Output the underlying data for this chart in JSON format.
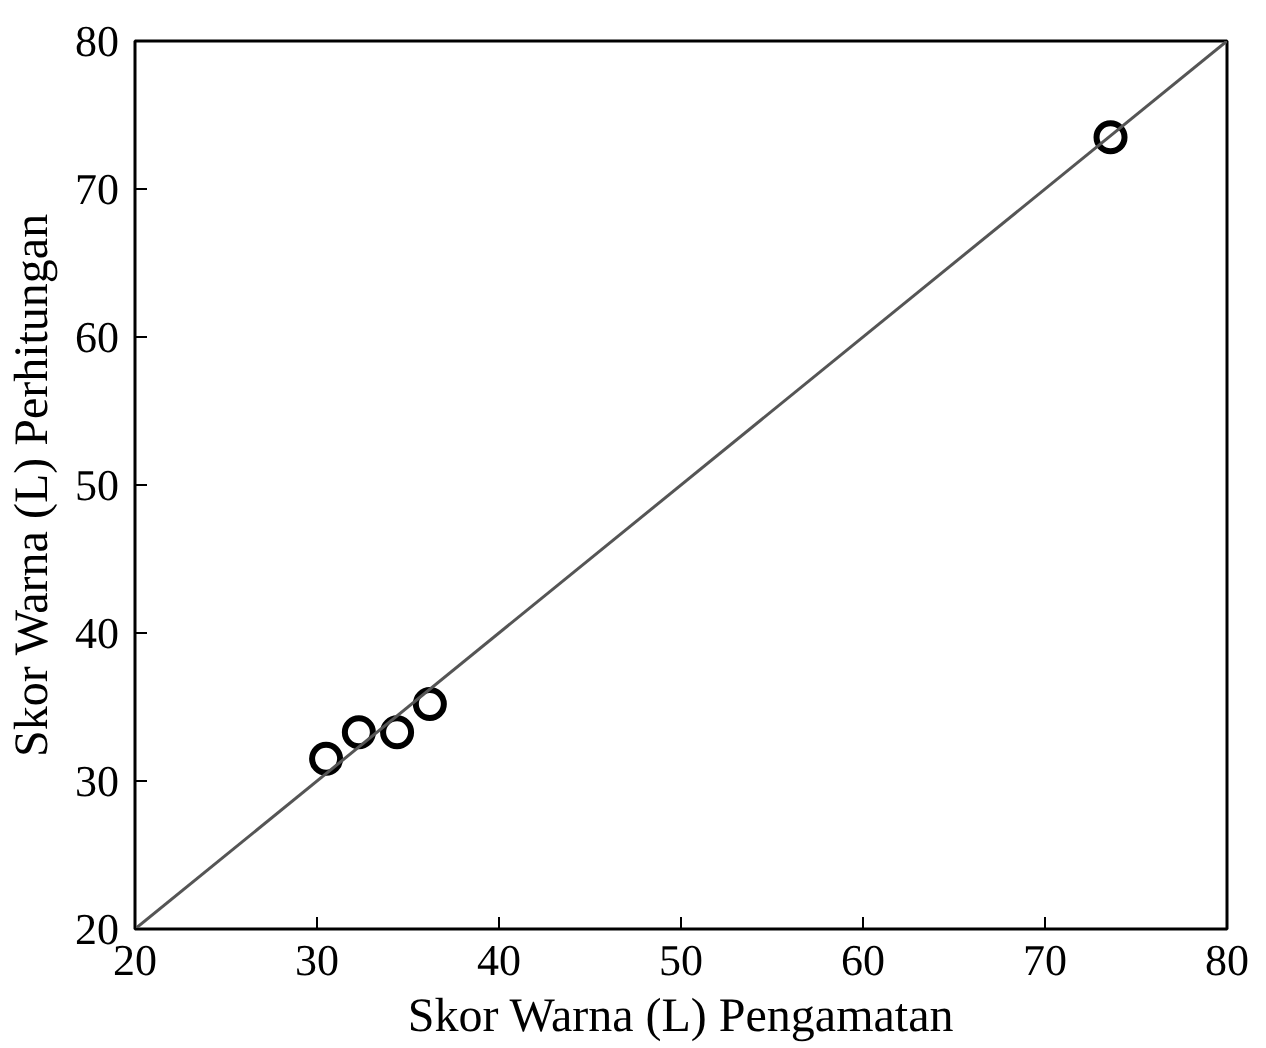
{
  "chart_data": {
    "type": "scatter",
    "xlabel": "Skor Warna (L) Pengamatan",
    "ylabel": "Skor Warna (L) Perhitungan",
    "xlim": [
      20,
      80
    ],
    "ylim": [
      20,
      80
    ],
    "xticks": [
      20,
      30,
      40,
      50,
      60,
      70,
      80
    ],
    "yticks": [
      20,
      30,
      40,
      50,
      60,
      70,
      80
    ],
    "grid": false,
    "marker": "circle",
    "series": [
      {
        "color": "#000000",
        "x": [
          30.5,
          32.3,
          34.4,
          36.2,
          73.6
        ],
        "values": [
          31.5,
          33.3,
          33.3,
          35.2,
          73.5
        ]
      },
      {
        "type": "line",
        "color": "#555555",
        "x": [
          20,
          80
        ],
        "values": [
          20,
          80
        ],
        "marker": "none"
      }
    ]
  }
}
